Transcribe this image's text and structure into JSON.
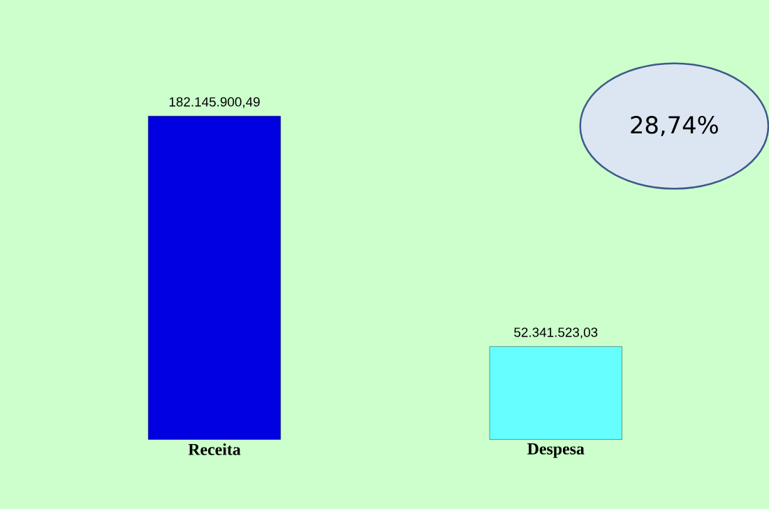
{
  "chart_data": {
    "type": "bar",
    "categories": [
      "Receita",
      "Despesa"
    ],
    "values": [
      182145900.49,
      52341523.03
    ],
    "colors": [
      "#0000e0",
      "#66ffff"
    ],
    "value_labels": [
      "182.145.900,49",
      "52.341.523,03"
    ],
    "annotations": [
      "28,74%"
    ]
  }
}
